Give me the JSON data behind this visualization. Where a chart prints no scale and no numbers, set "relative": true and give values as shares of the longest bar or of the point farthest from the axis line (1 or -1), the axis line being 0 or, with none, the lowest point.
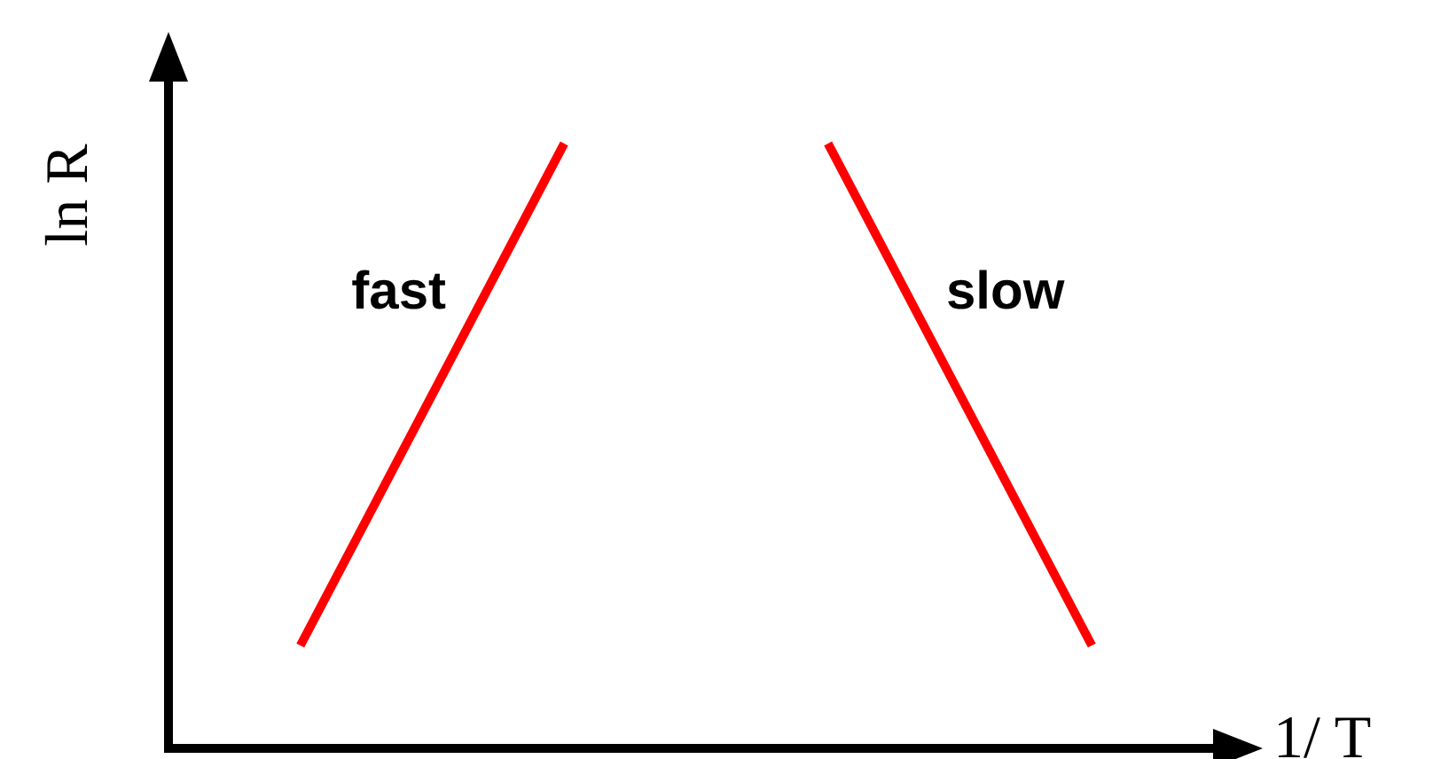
{
  "chart_data": {
    "type": "line",
    "relative": true,
    "xlabel": "1/ T",
    "ylabel": "ln R",
    "categories": [
      null,
      null,
      null,
      null
    ],
    "series": [
      {
        "name": "fast",
        "color": "#ff0000",
        "values": [
          0.17,
          1,
          null,
          null
        ]
      },
      {
        "name": "slow",
        "color": "#ff0000",
        "values": [
          null,
          null,
          1,
          0.17
        ]
      }
    ],
    "legend": false,
    "grid": false,
    "marker": "none",
    "line_style": "solid"
  }
}
